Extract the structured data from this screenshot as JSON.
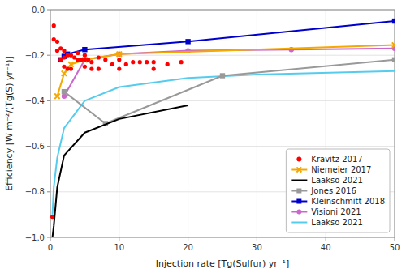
{
  "chart_data": {
    "type": "line",
    "xlabel": "Injection rate [Tg(Sulfur) yr⁻¹]",
    "ylabel": "Efficiency [W m⁻²/(Tg(S) yr⁻¹)]",
    "xlim": [
      0,
      50
    ],
    "ylim": [
      -1.0,
      0.0
    ],
    "xticks": [
      0,
      10,
      20,
      30,
      40,
      50
    ],
    "yticks": [
      {
        "value": 0,
        "label": "0.0"
      },
      {
        "value": -0.2,
        "label": "−0.2"
      },
      {
        "value": -0.4,
        "label": "−0.4"
      },
      {
        "value": -0.6,
        "label": "−0.6"
      },
      {
        "value": -0.8,
        "label": "−0.8"
      },
      {
        "value": -1.0,
        "label": "−1.0"
      }
    ],
    "grid": true,
    "legend": "lower right",
    "series": [
      {
        "name": "Kravitz 2017",
        "type": "scatter",
        "color": "red",
        "marker": "circle",
        "x": [
          0.5,
          0.5,
          1.0,
          1.0,
          1.5,
          1.5,
          2.0,
          2.0,
          2.0,
          2.5,
          2.5,
          3.0,
          3.0,
          3.5,
          4.0,
          4.0,
          4.5,
          5.0,
          5.0,
          5.0,
          5.5,
          6.0,
          6.0,
          7.0,
          7.0,
          8.0,
          9.0,
          10.0,
          10.0,
          11.0,
          12.0,
          13.0,
          14.0,
          15.0,
          15.0,
          17.0,
          19.0,
          0.3
        ],
        "values": [
          -0.07,
          -0.13,
          -0.14,
          -0.18,
          -0.17,
          -0.22,
          -0.18,
          -0.21,
          -0.25,
          -0.2,
          -0.26,
          -0.2,
          -0.26,
          -0.21,
          -0.19,
          -0.22,
          -0.22,
          -0.2,
          -0.22,
          -0.25,
          -0.22,
          -0.23,
          -0.26,
          -0.21,
          -0.26,
          -0.22,
          -0.24,
          -0.22,
          -0.26,
          -0.24,
          -0.23,
          -0.23,
          -0.23,
          -0.23,
          -0.26,
          -0.24,
          -0.23,
          -0.91
        ]
      },
      {
        "name": "Niemeier 2017",
        "color": "#f5a800",
        "marker": "x",
        "x": [
          1.0,
          2.0,
          3.0,
          5.0,
          10.0,
          50.0
        ],
        "values": [
          -0.38,
          -0.28,
          -0.24,
          -0.22,
          -0.195,
          -0.155
        ]
      },
      {
        "name": "Laakso 2021",
        "color": "#000000",
        "x": [
          0.3,
          0.5,
          1.0,
          2.0,
          5.0,
          10.0,
          20.0
        ],
        "values": [
          -1.0,
          -0.95,
          -0.78,
          -0.64,
          -0.54,
          -0.48,
          -0.42
        ]
      },
      {
        "name": "Jones 2016",
        "color": "#999999",
        "marker": "square",
        "x": [
          2.0,
          8.0,
          25.0,
          50.0
        ],
        "values": [
          -0.36,
          -0.5,
          -0.29,
          -0.22
        ]
      },
      {
        "name": "Kleinschmitt 2018",
        "color": "#0000cc",
        "marker": "square",
        "x": [
          1.5,
          2.0,
          2.5,
          5.0,
          20.0,
          50.0
        ],
        "values": [
          -0.22,
          -0.205,
          -0.195,
          -0.175,
          -0.14,
          -0.05
        ]
      },
      {
        "name": "Visioni 2021",
        "color": "#cc66cc",
        "marker": "circle",
        "x": [
          2.0,
          5.0,
          10.0,
          20.0,
          35.0,
          50.0
        ],
        "values": [
          -0.38,
          -0.22,
          -0.195,
          -0.18,
          -0.175,
          -0.17
        ]
      },
      {
        "name": "Laakso 2021",
        "color": "#55ccee",
        "x": [
          0.3,
          0.5,
          1.0,
          2.0,
          5.0,
          10.0,
          20.0,
          30.0,
          50.0
        ],
        "values": [
          -0.9,
          -0.78,
          -0.65,
          -0.52,
          -0.4,
          -0.34,
          -0.3,
          -0.285,
          -0.27
        ]
      }
    ]
  }
}
